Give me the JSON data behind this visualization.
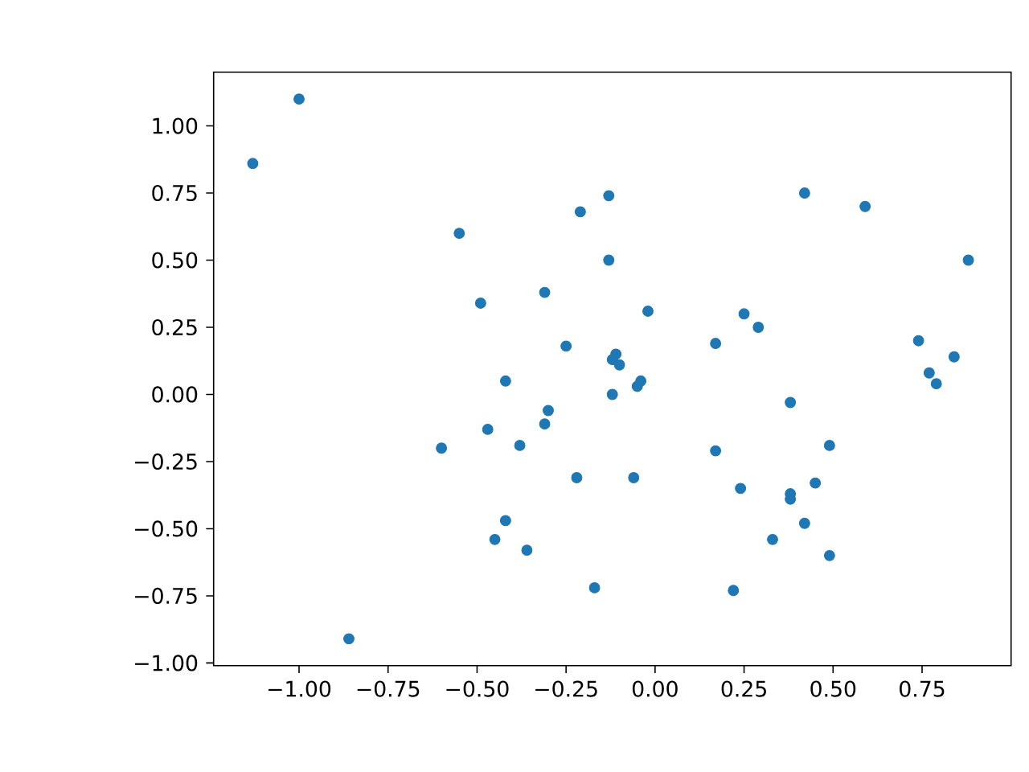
{
  "chart_data": {
    "type": "scatter",
    "color": "#1f77b4",
    "marker": "circle",
    "x": [
      -1.13,
      -1.0,
      -0.86,
      -0.55,
      -0.49,
      -0.6,
      -0.47,
      -0.42,
      -0.42,
      -0.45,
      -0.38,
      -0.36,
      -0.31,
      -0.3,
      -0.31,
      -0.25,
      -0.22,
      -0.21,
      -0.17,
      -0.13,
      -0.13,
      -0.12,
      -0.11,
      -0.1,
      -0.12,
      -0.06,
      -0.05,
      -0.04,
      -0.02,
      0.17,
      0.17,
      0.22,
      0.24,
      0.25,
      0.29,
      0.33,
      0.38,
      0.38,
      0.38,
      0.42,
      0.42,
      0.45,
      0.49,
      0.49,
      0.59,
      0.74,
      0.77,
      0.79,
      0.84,
      0.88
    ],
    "values": [
      0.86,
      1.1,
      -0.91,
      0.6,
      0.34,
      -0.2,
      -0.13,
      0.05,
      -0.47,
      -0.54,
      -0.19,
      -0.58,
      0.38,
      -0.06,
      -0.11,
      0.18,
      -0.31,
      0.68,
      -0.72,
      0.74,
      0.5,
      0.13,
      0.15,
      0.11,
      0.0,
      -0.31,
      0.03,
      0.05,
      0.31,
      0.19,
      -0.21,
      -0.73,
      -0.35,
      0.3,
      0.25,
      -0.54,
      -0.03,
      -0.39,
      -0.37,
      -0.48,
      0.75,
      -0.33,
      -0.6,
      -0.19,
      0.7,
      0.2,
      0.08,
      0.04,
      0.14,
      0.5
    ],
    "xlim": [
      -1.24,
      1.0
    ],
    "ylim": [
      -1.01,
      1.2
    ],
    "xticks": [
      {
        "value": -1.0,
        "label": "−1.00"
      },
      {
        "value": -0.75,
        "label": "−0.75"
      },
      {
        "value": -0.5,
        "label": "−0.50"
      },
      {
        "value": -0.25,
        "label": "−0.25"
      },
      {
        "value": 0,
        "label": "0.00"
      },
      {
        "value": 0.25,
        "label": "0.25"
      },
      {
        "value": 0.5,
        "label": "0.50"
      },
      {
        "value": 0.75,
        "label": "0.75"
      }
    ],
    "yticks": [
      {
        "value": -1.0,
        "label": "−1.00"
      },
      {
        "value": -0.75,
        "label": "−0.75"
      },
      {
        "value": -0.5,
        "label": "−0.50"
      },
      {
        "value": -0.25,
        "label": "−0.25"
      },
      {
        "value": 0,
        "label": "0.00"
      },
      {
        "value": 0.25,
        "label": "0.25"
      },
      {
        "value": 0.5,
        "label": "0.50"
      },
      {
        "value": 0.75,
        "label": "0.75"
      },
      {
        "value": 1.0,
        "label": "1.00"
      }
    ]
  }
}
